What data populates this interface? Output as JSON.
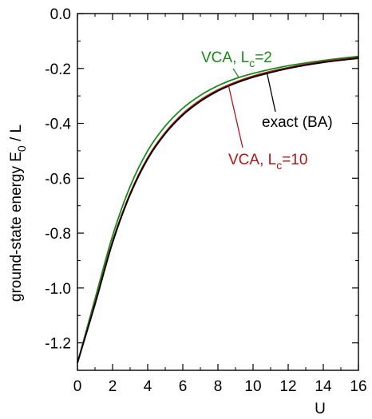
{
  "chart_data": {
    "type": "line",
    "title": "",
    "xlabel": "U",
    "ylabel_main": "ground-state energy E",
    "ylabel_sub": "0",
    "ylabel_tail": " / L",
    "xlim": [
      0,
      16
    ],
    "ylim": [
      -1.3,
      0.0
    ],
    "xticks": [
      0,
      2,
      4,
      6,
      8,
      10,
      12,
      14,
      16
    ],
    "xtick_labels": [
      "0",
      "2",
      "4",
      "6",
      "8",
      "10",
      "12",
      "14",
      "16"
    ],
    "yticks": [
      0.0,
      -0.2,
      -0.4,
      -0.6,
      -0.8,
      -1.0,
      -1.2
    ],
    "ytick_labels": [
      "0.0",
      "-0.2",
      "-0.4",
      "-0.6",
      "-0.8",
      "-1.0",
      "-1.2"
    ],
    "grid": false,
    "legend": "none",
    "series": [
      {
        "key": "vca2",
        "color": "#1a8a1a",
        "x": [
          0,
          1,
          2,
          3,
          4,
          5,
          6,
          7,
          8,
          9,
          10,
          11,
          12,
          13,
          14,
          15,
          16
        ],
        "y": [
          -1.273,
          -1.04,
          -0.81,
          -0.63,
          -0.5,
          -0.41,
          -0.345,
          -0.298,
          -0.263,
          -0.237,
          -0.218,
          -0.203,
          -0.19,
          -0.18,
          -0.171,
          -0.163,
          -0.156
        ]
      },
      {
        "key": "vca10",
        "color": "#b01818",
        "x": [
          0,
          1,
          2,
          3,
          4,
          5,
          6,
          7,
          8,
          9,
          10,
          11,
          12,
          13,
          14,
          15,
          16
        ],
        "y": [
          -1.273,
          -1.055,
          -0.83,
          -0.655,
          -0.525,
          -0.433,
          -0.365,
          -0.315,
          -0.278,
          -0.25,
          -0.228,
          -0.211,
          -0.197,
          -0.185,
          -0.175,
          -0.167,
          -0.16
        ]
      },
      {
        "key": "exact",
        "color": "#000000",
        "x": [
          0,
          1,
          2,
          3,
          4,
          5,
          6,
          7,
          8,
          9,
          10,
          11,
          12,
          13,
          14,
          15,
          16
        ],
        "y": [
          -1.273,
          -1.06,
          -0.835,
          -0.66,
          -0.53,
          -0.438,
          -0.37,
          -0.32,
          -0.282,
          -0.254,
          -0.232,
          -0.215,
          -0.2,
          -0.188,
          -0.178,
          -0.17,
          -0.163
        ]
      }
    ],
    "annotations": [
      {
        "key": "vca2",
        "main": "VCA, L",
        "sub": "c",
        "tail": "=2",
        "color": "#1a8a1a"
      },
      {
        "key": "exact",
        "main": "exact (BA)",
        "sub": "",
        "tail": "",
        "color": "#000000"
      },
      {
        "key": "vca10",
        "main": "VCA, L",
        "sub": "c",
        "tail": "=10",
        "color": "#b01818"
      }
    ]
  }
}
